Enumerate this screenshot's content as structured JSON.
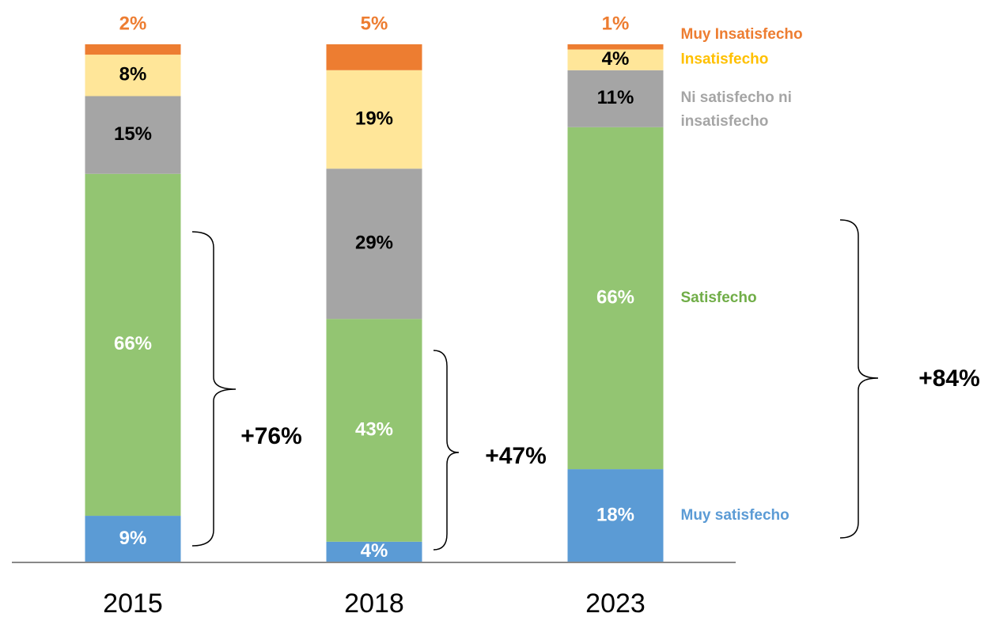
{
  "chart_data": {
    "type": "stacked_bar",
    "categories": [
      "2015",
      "2018",
      "2023"
    ],
    "series": [
      {
        "name": "Muy satisfecho",
        "color": "#5b9bd5",
        "text_color": "#5b9bd5",
        "values": [
          9,
          4,
          18
        ],
        "value_labels": [
          "9%",
          "4%",
          "18%"
        ]
      },
      {
        "name": "Satisfecho",
        "color": "#93c572",
        "text_color": "#70ad47",
        "values": [
          66,
          43,
          66
        ],
        "value_labels": [
          "66%",
          "43%",
          "66%"
        ]
      },
      {
        "name": "Ni satisfecho ni insatisfecho",
        "color": "#a5a5a5",
        "text_color": "#a5a5a5",
        "values": [
          15,
          29,
          11
        ],
        "value_labels": [
          "15%",
          "29%",
          "11%"
        ]
      },
      {
        "name": "Insatisfecho",
        "color": "#ffe699",
        "text_color": "#ffc000",
        "values": [
          8,
          19,
          4
        ],
        "value_labels": [
          "8%",
          "19%",
          "4%"
        ]
      },
      {
        "name": "Muy Insatisfecho",
        "color": "#ed7d31",
        "text_color": "#ed7d31",
        "values": [
          2,
          5,
          1
        ],
        "value_labels": [
          "2%",
          "5%",
          "1%"
        ]
      }
    ],
    "ylim": [
      0,
      100
    ],
    "annotations": [
      "+76%",
      "+47%",
      "+84%"
    ]
  }
}
